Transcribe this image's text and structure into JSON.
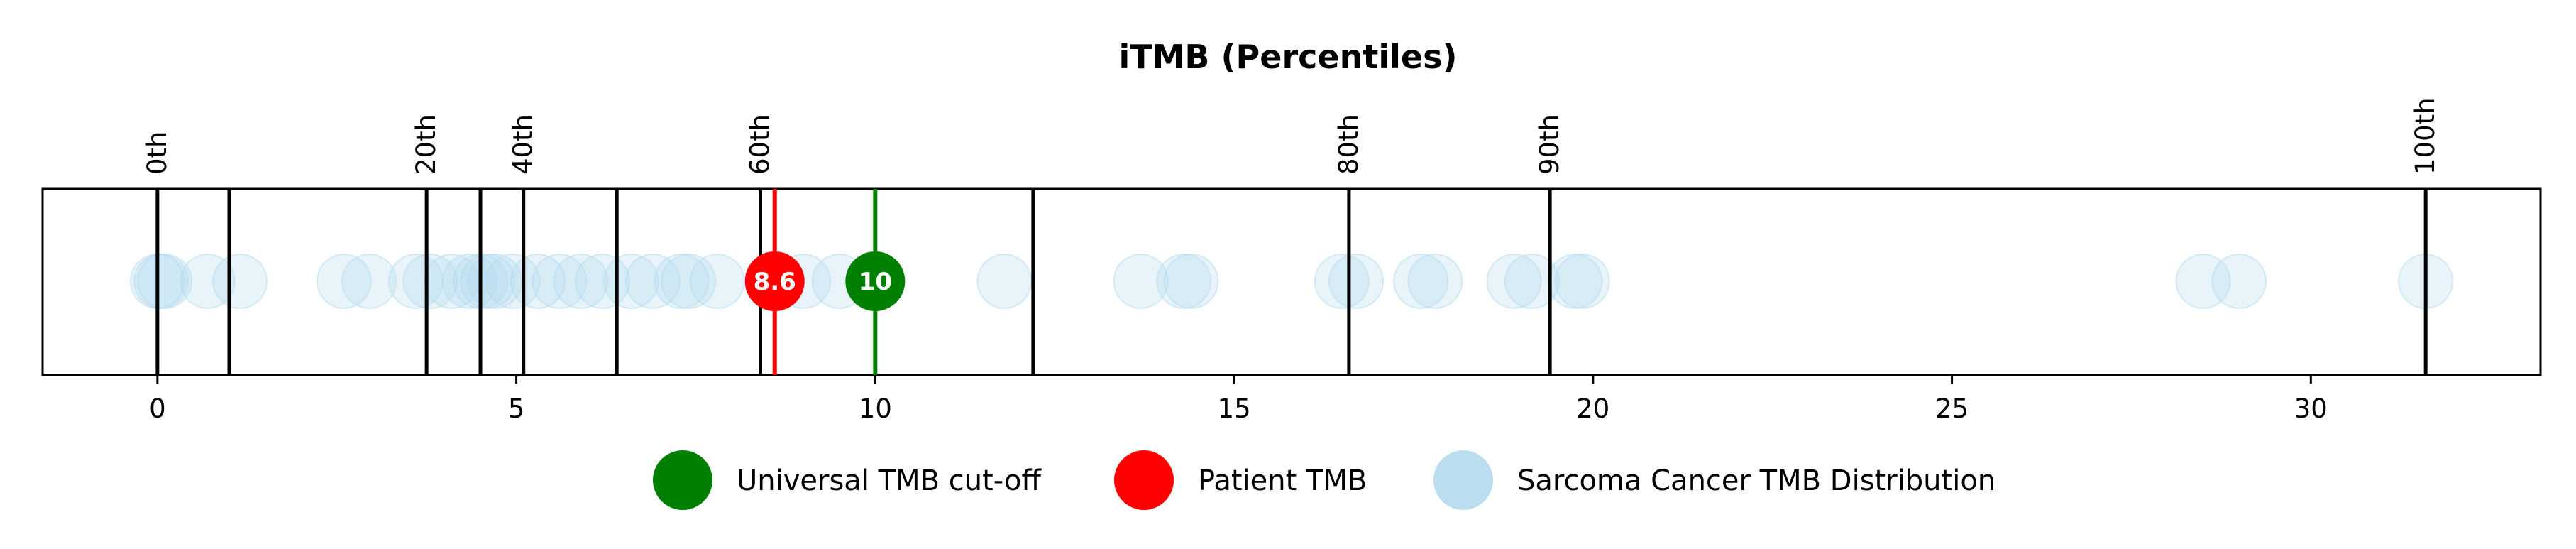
{
  "chart_data": {
    "type": "scatter",
    "title": "iTMB (Percentiles)",
    "xlabel": "",
    "ylabel": "",
    "xlim": [
      -1.6,
      33.2
    ],
    "x_ticks": [
      0,
      5,
      10,
      15,
      20,
      25,
      30
    ],
    "percentile_lines": [
      {
        "x": 0.0,
        "label": "0th"
      },
      {
        "x": 1.0,
        "label": ""
      },
      {
        "x": 3.75,
        "label": "20th"
      },
      {
        "x": 4.5,
        "label": ""
      },
      {
        "x": 5.1,
        "label": "40th"
      },
      {
        "x": 6.4,
        "label": ""
      },
      {
        "x": 8.4,
        "label": "60th"
      },
      {
        "x": 12.2,
        "label": ""
      },
      {
        "x": 16.6,
        "label": "80th"
      },
      {
        "x": 19.4,
        "label": "90th"
      },
      {
        "x": 31.6,
        "label": "100th"
      }
    ],
    "series": [
      {
        "name": "Sarcoma Cancer TMB Distribution",
        "color": "#b3d9ee",
        "x": [
          0.0,
          0.05,
          0.1,
          0.7,
          1.15,
          2.6,
          2.95,
          3.6,
          3.8,
          4.1,
          4.35,
          4.5,
          4.6,
          4.7,
          4.95,
          5.3,
          5.6,
          5.9,
          6.2,
          6.6,
          6.9,
          7.3,
          7.4,
          7.8,
          9.0,
          9.5,
          11.8,
          13.7,
          14.3,
          14.4,
          16.5,
          16.7,
          17.6,
          17.8,
          18.9,
          19.15,
          19.75,
          19.85,
          28.5,
          29.0,
          31.6
        ]
      },
      {
        "name": "Patient TMB",
        "color": "#ff0000",
        "x": [
          8.6
        ],
        "label": "8.6"
      },
      {
        "name": "Universal TMB cut-off",
        "color": "#008000",
        "x": [
          10
        ],
        "label": "10"
      }
    ],
    "legend_placement": "bottom-center",
    "legend": [
      "Universal TMB cut-off",
      "Patient TMB",
      "Sarcoma Cancer TMB Distribution"
    ],
    "grid": false
  }
}
